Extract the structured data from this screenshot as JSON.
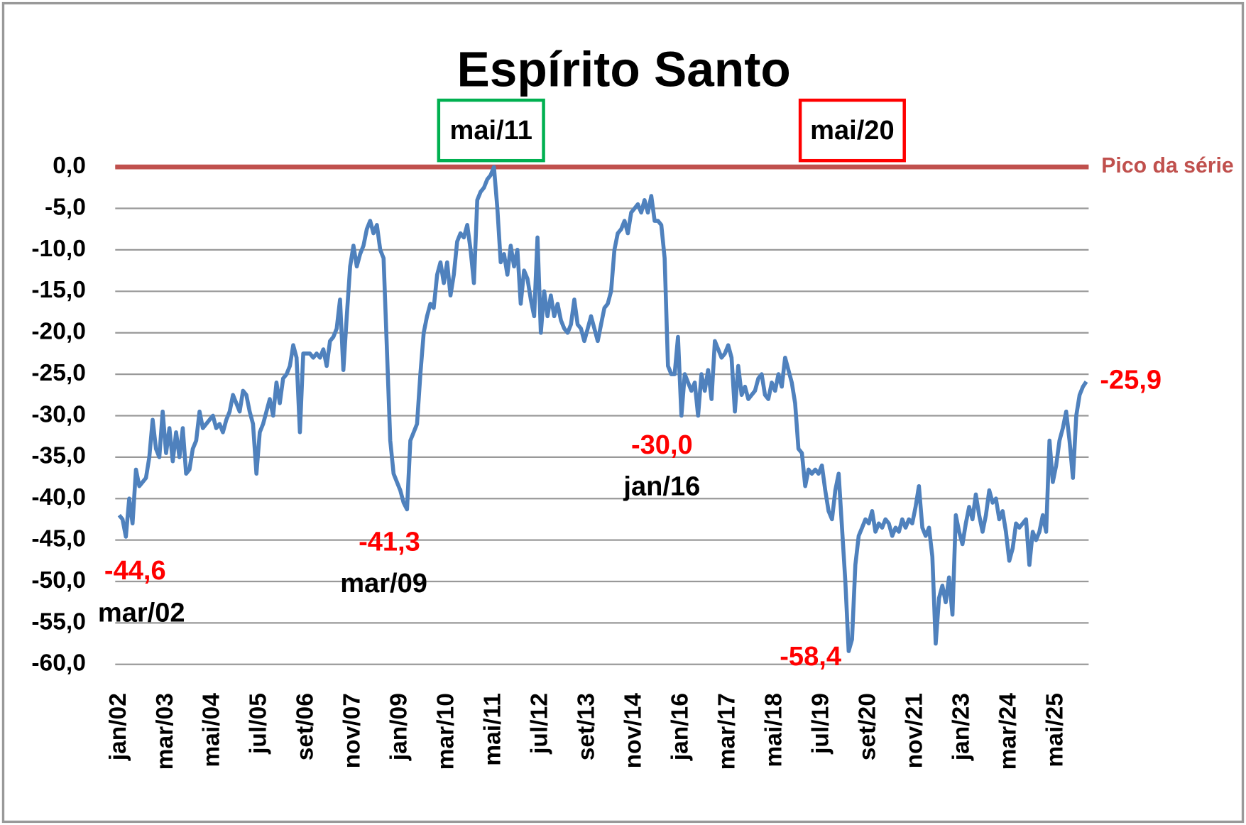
{
  "chart_data": {
    "type": "line",
    "title": "Espírito Santo",
    "categories": [
      "jan/02",
      null,
      null,
      null,
      null,
      null,
      null,
      null,
      null,
      null,
      null,
      null,
      null,
      null,
      "mar/03",
      null,
      null,
      null,
      null,
      null,
      null,
      null,
      null,
      null,
      null,
      null,
      null,
      null,
      "mai/04",
      null,
      null,
      null,
      null,
      null,
      null,
      null,
      null,
      null,
      null,
      null,
      null,
      null,
      "jul/05",
      null,
      null,
      null,
      null,
      null,
      null,
      null,
      null,
      null,
      null,
      null,
      null,
      null,
      "set/06",
      null,
      null,
      null,
      null,
      null,
      null,
      null,
      null,
      null,
      null,
      null,
      null,
      null,
      "nov/07",
      null,
      null,
      null,
      null,
      null,
      null,
      null,
      null,
      null,
      null,
      null,
      null,
      null,
      "jan/09",
      null,
      null,
      null,
      null,
      null,
      null,
      null,
      null,
      null,
      null,
      null,
      null,
      null,
      "mar/10",
      null,
      null,
      null,
      null,
      null,
      null,
      null,
      null,
      null,
      null,
      null,
      null,
      null,
      "mai/11",
      null,
      null,
      null,
      null,
      null,
      null,
      null,
      null,
      null,
      null,
      null,
      null,
      null,
      "jul/12",
      null,
      null,
      null,
      null,
      null,
      null,
      null,
      null,
      null,
      null,
      null,
      null,
      null,
      "set/13",
      null,
      null,
      null,
      null,
      null,
      null,
      null,
      null,
      null,
      null,
      null,
      null,
      null,
      "nov/14",
      null,
      null,
      null,
      null,
      null,
      null,
      null,
      null,
      null,
      null,
      null,
      null,
      null,
      "jan/16",
      null,
      null,
      null,
      null,
      null,
      null,
      null,
      null,
      null,
      null,
      null,
      null,
      null,
      "mar/17",
      null,
      null,
      null,
      null,
      null,
      null,
      null,
      null,
      null,
      null,
      null,
      null,
      null,
      "mai/18",
      null,
      null,
      null,
      null,
      null,
      null,
      null,
      null,
      null,
      null,
      null,
      null,
      null,
      "jul/19",
      null,
      null,
      null,
      null,
      null,
      null,
      null,
      null,
      null,
      null,
      null,
      null,
      null,
      "set/20",
      null,
      null,
      null,
      null,
      null,
      null,
      null,
      null,
      null,
      null,
      null,
      null,
      null,
      "nov/21",
      null,
      null,
      null,
      null,
      null,
      null,
      null,
      null,
      null,
      null,
      null,
      null,
      null,
      "jan/23",
      null,
      null,
      null,
      null,
      null,
      null,
      null,
      null,
      null,
      null,
      null,
      null,
      null,
      "mar/24",
      null,
      null,
      null,
      null,
      null,
      null,
      null,
      null,
      null,
      null,
      null,
      null,
      null,
      "mai/25",
      null,
      null,
      null,
      null,
      null,
      null,
      null,
      null,
      null
    ],
    "series": [
      {
        "color": "#4f81bd",
        "values": [
          -42,
          -42.5,
          -44.6,
          -40,
          -43,
          -36.5,
          -38.5,
          -38,
          -37.5,
          -35,
          -30.5,
          -34,
          -35,
          -29.5,
          -34.5,
          -31.5,
          -35.5,
          -32,
          -35,
          -31.5,
          -37,
          -36.5,
          -34,
          -33,
          -29.5,
          -31.5,
          -31,
          -30.5,
          -30,
          -31.5,
          -31,
          -32,
          -30.5,
          -29.5,
          -27.5,
          -28.5,
          -29.5,
          -27,
          -27.5,
          -29.5,
          -31,
          -37,
          -32,
          -31,
          -29.5,
          -28,
          -30,
          -26,
          -28.5,
          -25.5,
          -25,
          -24,
          -21.5,
          -23,
          -32,
          -22.5,
          -22.5,
          -22.5,
          -23,
          -22.5,
          -23,
          -22,
          -24,
          -21,
          -20.5,
          -19.5,
          -16,
          -24.5,
          -18,
          -12,
          -9.5,
          -12,
          -10.5,
          -9.5,
          -7.5,
          -6.5,
          -8,
          -7,
          -10,
          -11,
          -22,
          -33,
          -37,
          -38,
          -39,
          -40.5,
          -41.3,
          -33,
          -32,
          -31,
          -25,
          -20,
          -18,
          -16.5,
          -17,
          -13,
          -11.5,
          -14,
          -11.5,
          -15.5,
          -13,
          -9,
          -8,
          -8.5,
          -7,
          -10,
          -14,
          -4,
          -3,
          -2.5,
          -1.5,
          -1,
          0,
          -5,
          -11.5,
          -10.5,
          -13,
          -9.5,
          -12,
          -10,
          -16.5,
          -12.5,
          -13.5,
          -16,
          -18,
          -8.5,
          -20,
          -15,
          -18,
          -15.5,
          -18,
          -16.5,
          -18.5,
          -19.5,
          -20,
          -19,
          -16,
          -19,
          -19.5,
          -21,
          -19.5,
          -18,
          -19.5,
          -21,
          -19,
          -17,
          -16.5,
          -15,
          -10,
          -8,
          -7.5,
          -6.5,
          -8,
          -5.5,
          -5,
          -4.5,
          -5.5,
          -4,
          -5.5,
          -3.5,
          -6.5,
          -6.5,
          -7,
          -11,
          -24,
          -25,
          -25,
          -20.5,
          -30,
          -25,
          -26,
          -27,
          -26,
          -30,
          -25,
          -27,
          -24.5,
          -28,
          -21,
          -22,
          -23,
          -22.5,
          -21.5,
          -23,
          -29.5,
          -24,
          -27.5,
          -26.5,
          -28,
          -27.5,
          -27,
          -25.5,
          -25,
          -27.5,
          -28,
          -26,
          -27,
          -25,
          -26.5,
          -23,
          -24.5,
          -26,
          -28.5,
          -34,
          -34.5,
          -38.5,
          -36.5,
          -37,
          -36.5,
          -37,
          -36,
          -39,
          -41.5,
          -42.5,
          -39,
          -37,
          -43.5,
          -50,
          -58.4,
          -57,
          -48,
          -44.5,
          -43.5,
          -42.5,
          -43,
          -41.5,
          -44,
          -43,
          -43.5,
          -42.5,
          -43,
          -44.5,
          -43.5,
          -44,
          -42.5,
          -43.5,
          -42.5,
          -43,
          -41,
          -38.5,
          -43.5,
          -44.5,
          -43.5,
          -47,
          -57.5,
          -52,
          -50.5,
          -52.5,
          -49.5,
          -54,
          -42,
          -44,
          -45.5,
          -43,
          -41,
          -42.5,
          -39.5,
          -42,
          -44,
          -42,
          -39,
          -40.5,
          -40,
          -42.5,
          -41.5,
          -44,
          -47.5,
          -46,
          -43,
          -43.5,
          -43,
          -42.5,
          -48,
          -44,
          -45,
          -44,
          -42,
          -44,
          -33,
          -38,
          -36,
          -33,
          -31.5,
          -29.5,
          -33,
          -37.5,
          -30,
          -27.5,
          -26.5,
          -25.9
        ]
      }
    ],
    "ylim": [
      -60,
      0
    ],
    "yticks": [
      {
        "value": 0,
        "label": "0,0"
      },
      {
        "value": -5,
        "label": "-5,0"
      },
      {
        "value": -10,
        "label": "-10,0"
      },
      {
        "value": -15,
        "label": "-15,0"
      },
      {
        "value": -20,
        "label": "-20,0"
      },
      {
        "value": -25,
        "label": "-25,0"
      },
      {
        "value": -30,
        "label": "-30,0"
      },
      {
        "value": -35,
        "label": "-35,0"
      },
      {
        "value": -40,
        "label": "-40,0"
      },
      {
        "value": -45,
        "label": "-45,0"
      },
      {
        "value": -50,
        "label": "-50,0"
      },
      {
        "value": -55,
        "label": "-55,0"
      },
      {
        "value": -60,
        "label": "-60,0"
      }
    ],
    "grid": true,
    "reference_line": {
      "value": 0,
      "label": "Pico da série",
      "color": "#c0504d"
    },
    "boxes": [
      {
        "label": "mai/11",
        "color": "#00b050"
      },
      {
        "label": "mai/20",
        "color": "#ff0000"
      }
    ],
    "annotations": [
      {
        "value_label": "-44,6",
        "date": "mar/02"
      },
      {
        "value_label": "-41,3",
        "date": "mar/09"
      },
      {
        "value_label": "-30,0",
        "date": "jan/16"
      },
      {
        "value_label": "-58,4"
      },
      {
        "value_label": "-25,9"
      }
    ]
  }
}
